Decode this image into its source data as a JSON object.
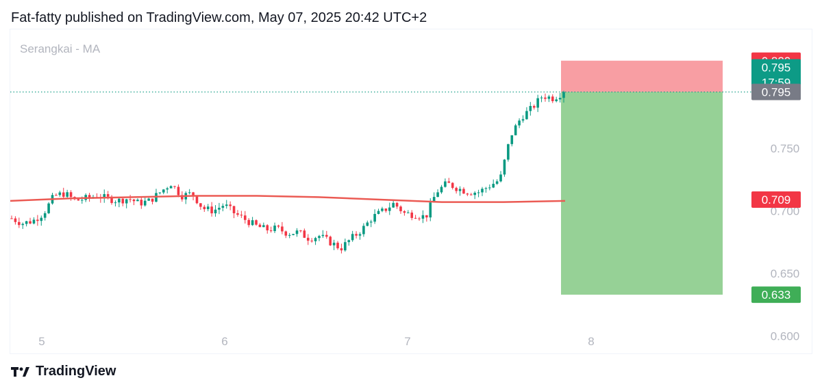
{
  "header": {
    "text": "Fat-fatty published on TradingView.com, May 07, 2025 20:42 UTC+2"
  },
  "footer": {
    "brand": "TradingView"
  },
  "colors": {
    "up": "#089981",
    "down": "#f23645",
    "ma": "#eb5a53",
    "stop_zone": "#f89ea3",
    "target_zone": "#96d196",
    "price_line": "#089981",
    "axis_text": "#b2b5be",
    "label_stop": "#f23645",
    "label_last": "#0d9b86",
    "label_entry": "#787b86",
    "label_ma": "#f23645",
    "label_target": "#3fae57"
  },
  "chart_data": {
    "type": "candlestick",
    "title": "Serangkai - MA",
    "y_axis": {
      "range": [
        0.585,
        0.845
      ],
      "ticks": [
        0.6,
        0.65,
        0.7,
        0.75
      ]
    },
    "x_axis": {
      "ticks": [
        "5",
        "6",
        "7",
        "8"
      ]
    },
    "series": [
      {
        "name": "MA",
        "values": [
          0.708,
          0.71,
          0.711,
          0.712,
          0.712,
          0.711,
          0.709,
          0.707,
          0.707,
          0.708
        ]
      }
    ],
    "ohlc_path": [
      0.694,
      0.69,
      0.692,
      0.698,
      0.712,
      0.714,
      0.708,
      0.71,
      0.712,
      0.71,
      0.708,
      0.71,
      0.706,
      0.708,
      0.715,
      0.722,
      0.712,
      0.714,
      0.702,
      0.7,
      0.705,
      0.698,
      0.693,
      0.688,
      0.685,
      0.686,
      0.682,
      0.683,
      0.678,
      0.68,
      0.675,
      0.67,
      0.678,
      0.685,
      0.695,
      0.7,
      0.706,
      0.698,
      0.697,
      0.695,
      0.715,
      0.722,
      0.718,
      0.715,
      0.715,
      0.72,
      0.725,
      0.76,
      0.775,
      0.782,
      0.792,
      0.79,
      0.795
    ],
    "position": {
      "entry": 0.795,
      "stop": 0.82,
      "target": 0.633
    },
    "labels": {
      "stop": "0.820",
      "last": "0.795",
      "countdown": "17:59",
      "entry": "0.795",
      "ma": "0.709",
      "target": "0.633"
    }
  }
}
